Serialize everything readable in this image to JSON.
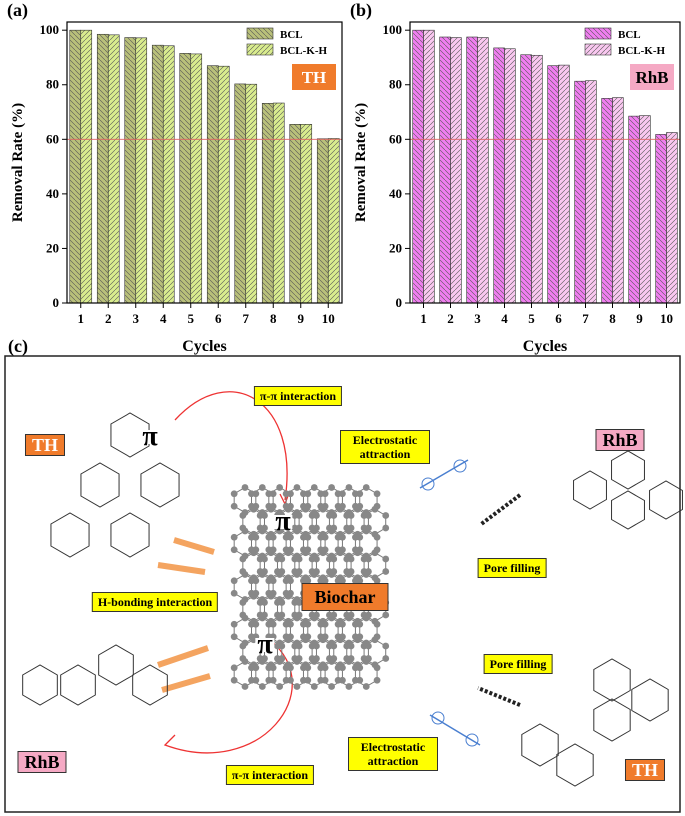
{
  "chart_data": [
    {
      "type": "bar",
      "panel_label": "(a)",
      "ylabel": "Removal Rate (%)",
      "xlabel": "Cycles",
      "badge": "TH",
      "badge_color": "#f07b2b",
      "categories": [
        "1",
        "2",
        "3",
        "4",
        "5",
        "6",
        "7",
        "8",
        "9",
        "10"
      ],
      "series": [
        {
          "name": "BCL",
          "color": "#b9c07a",
          "values": [
            100,
            98.5,
            97.3,
            94.5,
            91.5,
            87,
            80.3,
            73.2,
            65.5,
            60.2
          ]
        },
        {
          "name": "BCL-K-H",
          "color": "#d9ec8e",
          "values": [
            100,
            98.3,
            97.2,
            94.3,
            91.3,
            86.8,
            80.2,
            73.3,
            65.5,
            60.3
          ]
        }
      ],
      "reference_line": 60,
      "reference_color": "#e06060",
      "ylim": [
        0,
        103
      ],
      "yticks": [
        0,
        20,
        40,
        60,
        80,
        100
      ]
    },
    {
      "type": "bar",
      "panel_label": "(b)",
      "ylabel": "Removal Rate (%)",
      "xlabel": "Cycles",
      "badge": "RhB",
      "badge_color": "#f5a9c4",
      "categories": [
        "1",
        "2",
        "3",
        "4",
        "5",
        "6",
        "7",
        "8",
        "9",
        "10"
      ],
      "series": [
        {
          "name": "BCL",
          "color": "#f07ef0",
          "values": [
            100,
            97.5,
            97.5,
            93.5,
            91,
            87,
            81.3,
            75,
            68.5,
            61.8
          ]
        },
        {
          "name": "BCL-K-H",
          "color": "#f9c8f0",
          "values": [
            100,
            97.3,
            97.3,
            93.2,
            90.8,
            87.2,
            81.5,
            75.3,
            68.7,
            62.5
          ]
        }
      ],
      "reference_line": 60,
      "reference_color": "#e06060",
      "ylim": [
        0,
        103
      ],
      "yticks": [
        0,
        20,
        40,
        60,
        80,
        100
      ]
    }
  ],
  "diagram": {
    "panel_label": "(c)",
    "labels": [
      "π-π interaction",
      "Electrostatic attraction",
      "Pore filling",
      "H-bonding interaction",
      "Biochar",
      "Pore filling",
      "Electrostatic attraction",
      "π-π interaction",
      "TH",
      "RhB",
      "RhB",
      "TH",
      "π",
      "π",
      "π"
    ]
  }
}
